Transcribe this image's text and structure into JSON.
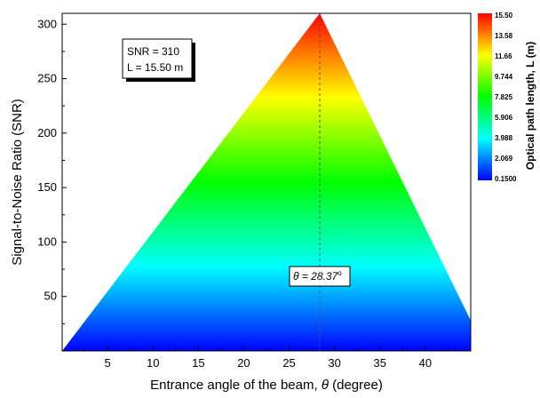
{
  "chart_data": {
    "type": "heatmap",
    "subtype": "contour-fill",
    "title": "",
    "xlabel": "Entrance angle of the beam, θ (degree)",
    "xlabel_prefix": "Entrance angle of the beam, ",
    "xlabel_symbol": "θ",
    "xlabel_suffix": " (degree)",
    "ylabel": "Signal-to-Noise Ratio (SNR)",
    "xlim": [
      0,
      45
    ],
    "ylim": [
      0,
      310
    ],
    "xticks": [
      5,
      10,
      15,
      20,
      25,
      30,
      35,
      40
    ],
    "yticks": [
      50,
      100,
      150,
      200,
      250,
      300
    ],
    "region_vertices": [
      [
        0,
        0
      ],
      [
        28.37,
        310
      ],
      [
        45,
        28
      ],
      [
        45,
        0
      ]
    ],
    "colorbar": {
      "label": "Optical path length, L (m)",
      "min": 0.15,
      "max": 15.5,
      "ticks": [
        "15.50",
        "13.58",
        "11.66",
        "9.744",
        "7.825",
        "5.906",
        "3.988",
        "2.069",
        "0.1500"
      ],
      "colormap": [
        "#0000ff",
        "#0080ff",
        "#00ffff",
        "#00ff80",
        "#00ff00",
        "#80ff00",
        "#ffff00",
        "#ff8000",
        "#ff0000"
      ]
    },
    "peak_line": {
      "x": 28.37,
      "label_prefix": "θ = 28.37",
      "label_sup": "o"
    },
    "annotation_box": {
      "line1": "SNR = 310",
      "line2": "L = 15.50 m"
    }
  }
}
